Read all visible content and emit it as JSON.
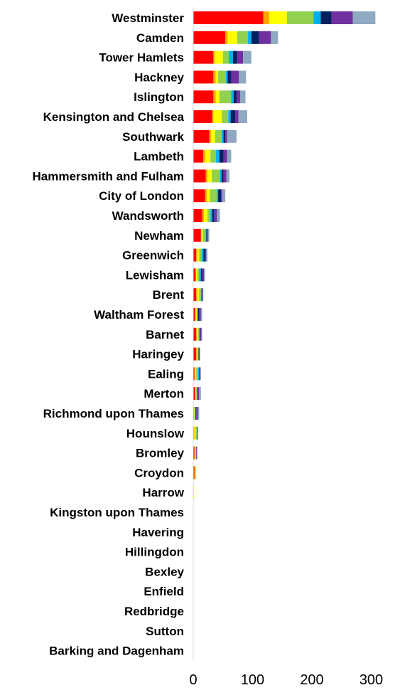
{
  "chart_data": {
    "type": "bar",
    "orientation": "horizontal",
    "stacked": true,
    "title": "",
    "xlabel": "",
    "ylabel": "",
    "xlim": [
      0,
      320
    ],
    "xticks": [
      0,
      100,
      200,
      300
    ],
    "xtick_labels": [
      "0",
      "100",
      "200",
      "300"
    ],
    "grid": false,
    "legend": "none",
    "categories": [
      "Westminster",
      "Camden",
      "Tower Hamlets",
      "Hackney",
      "Islington",
      "Kensington and Chelsea",
      "Southwark",
      "Lambeth",
      "Hammersmith and Fulham",
      "City of London",
      "Wandsworth",
      "Newham",
      "Greenwich",
      "Lewisham",
      "Brent",
      "Waltham Forest",
      "Barnet",
      "Haringey",
      "Ealing",
      "Merton",
      "Richmond upon Thames",
      "Hounslow",
      "Bromley",
      "Croydon",
      "Harrow",
      "Kingston upon Thames",
      "Havering",
      "Hillingdon",
      "Bexley",
      "Enfield",
      "Redbridge",
      "Sutton",
      "Barking and Dagenham"
    ],
    "series": [
      {
        "color": "#ff0000",
        "values": [
          118,
          54,
          34,
          34,
          34,
          32,
          27,
          17,
          21,
          20,
          15,
          13,
          5,
          4,
          5,
          3,
          5,
          5,
          2,
          3,
          1,
          1,
          2,
          2,
          0,
          0,
          0,
          0,
          0,
          0,
          0,
          0,
          0
        ]
      },
      {
        "color": "#ffa500",
        "values": [
          10,
          4,
          2,
          4,
          4,
          2,
          3,
          3,
          3,
          3,
          3,
          1,
          2,
          1,
          2,
          1,
          1,
          1,
          1,
          1,
          0,
          1,
          1,
          1,
          0.5,
          0,
          0,
          0,
          0,
          0,
          0,
          0,
          0
        ]
      },
      {
        "color": "#ffff00",
        "values": [
          30,
          16,
          14,
          4,
          6,
          14,
          7,
          9,
          7,
          5,
          6,
          2,
          3,
          2,
          3,
          2,
          2,
          1,
          2,
          1,
          1,
          2,
          1,
          1,
          1,
          0,
          0,
          0,
          0,
          0,
          0,
          0,
          0
        ]
      },
      {
        "color": "#92d050",
        "values": [
          45,
          18,
          10,
          13,
          20,
          11,
          11,
          9,
          14,
          12,
          5,
          5,
          4,
          3,
          3,
          1,
          2,
          2,
          3,
          1,
          1,
          2,
          1,
          1,
          0,
          0,
          0,
          0,
          0,
          0,
          0,
          0,
          0
        ]
      },
      {
        "color": "#00b0f0",
        "values": [
          12,
          6,
          7,
          3,
          4,
          4,
          3,
          6,
          3,
          2,
          3,
          1,
          3,
          3,
          1,
          1,
          1,
          0,
          2,
          1,
          1,
          1,
          0,
          0,
          0,
          0,
          0,
          0,
          0,
          0,
          0,
          0,
          0
        ]
      },
      {
        "color": "#002060",
        "values": [
          18,
          13,
          7,
          6,
          5,
          8,
          3,
          7,
          3,
          5,
          3,
          1,
          3,
          2,
          1,
          2,
          1,
          1,
          1,
          1,
          1,
          0,
          0,
          0,
          0,
          0,
          0,
          0,
          0,
          0,
          0,
          0,
          0
        ]
      },
      {
        "color": "#7030a0",
        "values": [
          36,
          20,
          10,
          13,
          6,
          5,
          3,
          6,
          5,
          2,
          5,
          2,
          2,
          3,
          1,
          3,
          2,
          1,
          1,
          2,
          3,
          1,
          1,
          0,
          0,
          0,
          0,
          0,
          0,
          0,
          0,
          0,
          0
        ]
      },
      {
        "color": "#8ea9c1",
        "values": [
          38,
          12,
          14,
          12,
          9,
          15,
          16,
          7,
          5,
          5,
          5,
          2,
          2,
          2,
          1,
          2,
          1,
          1,
          1,
          3,
          2,
          0,
          1,
          0,
          0,
          0,
          0,
          0,
          0,
          0,
          0,
          0,
          0
        ]
      }
    ]
  }
}
